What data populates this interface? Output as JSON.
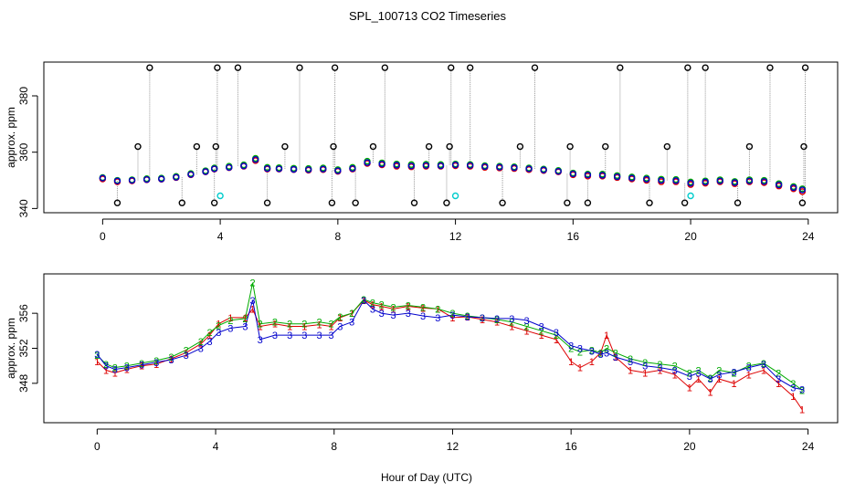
{
  "figure": {
    "title": "SPL_100713  CO2 Timeseries",
    "xlabel": "Hour of Day (UTC)"
  },
  "chart_data": [
    {
      "type": "scatter",
      "panel": "top",
      "title": "SPL_100713  CO2 Timeseries",
      "xlabel": "Hour of Day (UTC)",
      "ylabel": "approx. ppm",
      "xlim": [
        -2,
        25
      ],
      "ylim": [
        338.5,
        392
      ],
      "xticks": [
        0,
        4,
        8,
        12,
        16,
        20,
        24
      ],
      "yticks": [
        340,
        360,
        380
      ],
      "ytick_labels": [
        "340",
        "360",
        "380"
      ],
      "legend": "none",
      "series": [
        {
          "name": "red",
          "color": "#dd0000",
          "x": [
            0,
            0.5,
            1,
            1.5,
            2,
            2.5,
            3,
            3.5,
            3.8,
            4.3,
            4.8,
            5.2,
            5.6,
            6,
            6.5,
            7,
            7.5,
            8,
            8.5,
            9,
            9.5,
            10,
            10.5,
            11,
            11.5,
            12,
            12.5,
            13,
            13.5,
            14,
            14.5,
            15,
            15.5,
            16,
            16.5,
            17,
            17.5,
            18,
            18.5,
            19,
            19.5,
            20,
            20.5,
            21,
            21.5,
            22,
            22.5,
            23,
            23.5,
            23.8
          ],
          "y": [
            350.5,
            349.5,
            349.8,
            350.2,
            350.4,
            351,
            352,
            353,
            354,
            354.5,
            355,
            357,
            354,
            354,
            353.8,
            353.6,
            353.8,
            353.2,
            354,
            356,
            355.5,
            355,
            354.8,
            355,
            355,
            355.2,
            355,
            354.6,
            354.4,
            354.2,
            353.8,
            353.5,
            353,
            352,
            351.5,
            351.5,
            351,
            350.5,
            350,
            349.5,
            349.5,
            348.5,
            349,
            349.5,
            348.8,
            349.5,
            349.2,
            348,
            347,
            346
          ]
        },
        {
          "name": "green",
          "color": "#00aa00",
          "x": [
            0,
            0.5,
            1,
            1.5,
            2,
            2.5,
            3,
            3.5,
            3.8,
            4.3,
            4.8,
            5.2,
            5.6,
            6,
            6.5,
            7,
            7.5,
            8,
            8.5,
            9,
            9.5,
            10,
            10.5,
            11,
            11.5,
            12,
            12.5,
            13,
            13.5,
            14,
            14.5,
            15,
            15.5,
            16,
            16.5,
            17,
            17.5,
            18,
            18.5,
            19,
            19.5,
            20,
            20.5,
            21,
            21.5,
            22,
            22.5,
            23,
            23.5,
            23.8
          ],
          "y": [
            351,
            350,
            350.2,
            350.6,
            350.8,
            351.4,
            352.4,
            353.4,
            354.4,
            355,
            355.5,
            357.8,
            354.6,
            354.5,
            354.3,
            354.2,
            354.4,
            353.8,
            354.6,
            356.8,
            356.2,
            355.8,
            355.6,
            355.7,
            355.6,
            355.8,
            355.6,
            355.2,
            355,
            354.8,
            354.4,
            354,
            353.5,
            352.6,
            352.2,
            352.2,
            351.7,
            351.2,
            350.8,
            350.4,
            350.3,
            349.4,
            349.8,
            350.2,
            349.6,
            350.2,
            350,
            348.8,
            347.8,
            347
          ]
        },
        {
          "name": "blue",
          "color": "#0000cc",
          "x": [
            0,
            0.5,
            1,
            1.5,
            2,
            2.5,
            3,
            3.5,
            3.8,
            4.3,
            4.8,
            5.2,
            5.6,
            6,
            6.5,
            7,
            7.5,
            8,
            8.5,
            9,
            9.5,
            10,
            10.5,
            11,
            11.5,
            12,
            12.5,
            13,
            13.5,
            14,
            14.5,
            15,
            15.5,
            16,
            16.5,
            17,
            17.5,
            18,
            18.5,
            19,
            19.5,
            20,
            20.5,
            21,
            21.5,
            22,
            22.5,
            23,
            23.5,
            23.8
          ],
          "y": [
            350.8,
            349.8,
            350,
            350.3,
            350.5,
            351.1,
            352.1,
            353.1,
            354.1,
            354.6,
            355.1,
            357.4,
            354.2,
            354.1,
            353.9,
            353.8,
            354,
            353.4,
            354.2,
            356.3,
            355.8,
            355.4,
            355.1,
            355.3,
            355.2,
            355.5,
            355.3,
            354.9,
            354.7,
            354.5,
            354.1,
            353.7,
            353.2,
            352.3,
            351.9,
            351.8,
            351.3,
            350.8,
            350.4,
            350,
            349.9,
            349,
            349.4,
            349.8,
            349.2,
            349.8,
            349.6,
            348.4,
            347.4,
            346.6
          ]
        },
        {
          "name": "black",
          "color": "#000000",
          "x": [
            0.5,
            1.2,
            1.6,
            2.7,
            3.2,
            3.8,
            3.85,
            3.9,
            4.6,
            5.6,
            6.2,
            6.7,
            7.8,
            7.85,
            7.9,
            8.6,
            9.2,
            9.6,
            10.6,
            11.1,
            11.7,
            11.8,
            11.85,
            12.5,
            13.6,
            14.2,
            14.7,
            15.8,
            15.9,
            16.5,
            17.1,
            17.6,
            18.6,
            19.2,
            19.8,
            19.9,
            20.5,
            21.6,
            22.0,
            22.7,
            23.8,
            23.85,
            23.9
          ],
          "y": [
            342,
            362,
            390,
            342,
            362,
            342,
            362,
            390,
            390,
            342,
            362,
            390,
            342,
            362,
            390,
            342,
            362,
            390,
            342,
            362,
            342,
            362,
            390,
            390,
            342,
            362,
            390,
            342,
            362,
            342,
            362,
            390,
            342,
            362,
            342,
            390,
            390,
            342,
            362,
            390,
            342,
            362,
            390
          ]
        },
        {
          "name": "cyan",
          "color": "#00cccc",
          "x": [
            4.0,
            12.0,
            20.0
          ],
          "y": [
            344.5,
            344.5,
            344.5
          ]
        }
      ]
    },
    {
      "type": "line",
      "panel": "bottom",
      "xlabel": "Hour of Day (UTC)",
      "ylabel": "approx. ppm",
      "xlim": [
        -1.8,
        25
      ],
      "ylim": [
        343.5,
        360.5
      ],
      "xticks": [
        0,
        4,
        8,
        12,
        16,
        20,
        24
      ],
      "yticks": [
        348,
        352,
        356
      ],
      "ytick_labels": [
        "348",
        "352",
        "356"
      ],
      "legend": "none",
      "series": [
        {
          "name": "1",
          "color": "#dd0000",
          "x": [
            0,
            0.3,
            0.6,
            1,
            1.5,
            2,
            2.5,
            3,
            3.5,
            3.8,
            4.1,
            4.5,
            5,
            5.25,
            5.5,
            6,
            6.5,
            7,
            7.5,
            7.9,
            8.2,
            8.6,
            9,
            9.3,
            9.6,
            10,
            10.5,
            11,
            11.5,
            12,
            12.5,
            13,
            13.5,
            14,
            14.5,
            15,
            15.5,
            16,
            16.3,
            16.7,
            17,
            17.2,
            17.5,
            18,
            18.5,
            19,
            19.5,
            20,
            20.3,
            20.7,
            21,
            21.5,
            22,
            22.5,
            23,
            23.5,
            23.8
          ],
          "y": [
            350.5,
            349.5,
            349.2,
            349.6,
            350,
            350.2,
            350.8,
            351.5,
            352.5,
            353.5,
            354.8,
            355.5,
            355.5,
            356.5,
            354.5,
            354.8,
            354.5,
            354.5,
            354.7,
            354.5,
            355.5,
            356,
            357.5,
            357,
            356.8,
            356.5,
            356.8,
            356.6,
            356.5,
            355.5,
            355.6,
            355.3,
            355,
            354.5,
            354,
            353.5,
            353,
            350.5,
            349.8,
            350.5,
            351.5,
            353.5,
            351,
            349.5,
            349.2,
            349.5,
            349,
            347.5,
            348.5,
            347,
            348.5,
            348,
            349,
            349.5,
            348,
            346.5,
            345
          ]
        },
        {
          "name": "2",
          "color": "#00aa00",
          "x": [
            0,
            0.3,
            0.6,
            1,
            1.5,
            2,
            2.5,
            3,
            3.5,
            3.8,
            4.1,
            4.5,
            5,
            5.25,
            5.5,
            6,
            6.5,
            7,
            7.5,
            7.9,
            8.2,
            8.6,
            9,
            9.3,
            9.6,
            10,
            10.5,
            11,
            11.5,
            12,
            12.5,
            13,
            13.5,
            14,
            14.5,
            15,
            15.5,
            16,
            16.3,
            16.7,
            17,
            17.2,
            17.5,
            18,
            18.5,
            19,
            19.5,
            20,
            20.3,
            20.7,
            21,
            21.5,
            22,
            22.5,
            23,
            23.5,
            23.8
          ],
          "y": [
            351.2,
            350.2,
            349.8,
            350,
            350.3,
            350.6,
            351,
            351.8,
            352.8,
            353.8,
            354.6,
            355.2,
            355.4,
            359.5,
            354.8,
            355,
            354.8,
            354.8,
            355,
            354.8,
            355.6,
            356,
            357.6,
            357.2,
            357,
            356.7,
            356.9,
            356.7,
            356.5,
            356,
            355.7,
            355.5,
            355.3,
            355,
            354.5,
            354,
            353.5,
            352,
            351.6,
            351.8,
            351.5,
            352,
            351.5,
            350.8,
            350.4,
            350.2,
            350,
            349.2,
            349.5,
            348.6,
            349.5,
            349.2,
            350,
            350.3,
            349.2,
            348,
            347.2
          ]
        },
        {
          "name": "3",
          "color": "#0000cc",
          "x": [
            0,
            0.3,
            0.6,
            1,
            1.5,
            2,
            2.5,
            3,
            3.5,
            3.8,
            4.1,
            4.5,
            5,
            5.25,
            5.5,
            6,
            6.5,
            7,
            7.5,
            7.9,
            8.2,
            8.6,
            9,
            9.3,
            9.6,
            10,
            10.5,
            11,
            11.5,
            12,
            12.5,
            13,
            13.5,
            14,
            14.5,
            15,
            15.5,
            16,
            16.3,
            16.7,
            17,
            17.2,
            17.5,
            18,
            18.5,
            19,
            19.5,
            20,
            20.3,
            20.7,
            21,
            21.5,
            22,
            22.5,
            23,
            23.5,
            23.8
          ],
          "y": [
            351.3,
            350,
            349.6,
            349.8,
            350.1,
            350.4,
            350.7,
            351.2,
            352,
            352.8,
            353.8,
            354.3,
            354.5,
            357.5,
            353,
            353.5,
            353.5,
            353.5,
            353.5,
            353.5,
            354.5,
            355,
            357.5,
            356.5,
            356,
            355.8,
            356,
            355.7,
            355.5,
            355.8,
            355.6,
            355.5,
            355.4,
            355.4,
            355.2,
            354.5,
            353.8,
            352.3,
            352,
            351.7,
            351.3,
            351.5,
            351,
            350.5,
            350,
            349.8,
            349.5,
            348.8,
            349.2,
            348.5,
            349,
            349.3,
            349.8,
            350.2,
            348.5,
            347.5,
            347.3
          ]
        }
      ]
    }
  ]
}
